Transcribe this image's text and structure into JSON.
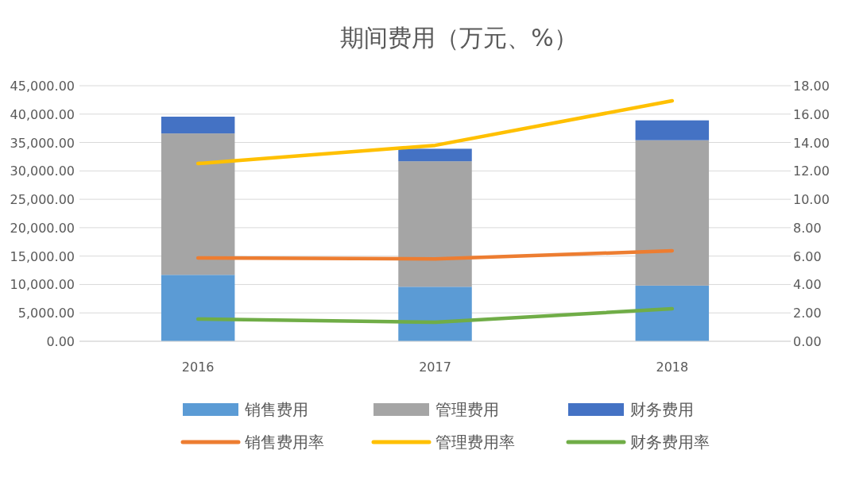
{
  "chart_data": {
    "type": "bar",
    "title": "期间费用（万元、%）",
    "stacked": true,
    "categories": [
      "2016",
      "2017",
      "2018"
    ],
    "series": [
      {
        "name": "销售费用",
        "color": "#5b9bd5",
        "values": [
          11700,
          9600,
          9800
        ]
      },
      {
        "name": "管理费用",
        "color": "#a5a5a5",
        "values": [
          24900,
          22100,
          25600
        ]
      },
      {
        "name": "财务费用",
        "color": "#4472c4",
        "values": [
          2950,
          2200,
          3500
        ]
      },
      {
        "name": "销售费用率",
        "type": "line",
        "axis": "y2",
        "color": "#ed7d31",
        "values": [
          5.87,
          5.8,
          6.37
        ]
      },
      {
        "name": "管理费用率",
        "type": "line",
        "axis": "y2",
        "color": "#ffc000",
        "values": [
          12.52,
          13.8,
          16.94
        ]
      },
      {
        "name": "财务费用率",
        "type": "line",
        "axis": "y2",
        "color": "#70ad47",
        "values": [
          1.57,
          1.34,
          2.29
        ]
      }
    ],
    "ylim": [
      0,
      45000
    ],
    "yticks": [
      {
        "value": 0,
        "label": "0.00"
      },
      {
        "value": 5000,
        "label": "5,000.00"
      },
      {
        "value": 10000,
        "label": "10,000.00"
      },
      {
        "value": 15000,
        "label": "15,000.00"
      },
      {
        "value": 20000,
        "label": "20,000.00"
      },
      {
        "value": 25000,
        "label": "25,000.00"
      },
      {
        "value": 30000,
        "label": "30,000.00"
      },
      {
        "value": 35000,
        "label": "35,000.00"
      },
      {
        "value": 40000,
        "label": "40,000.00"
      },
      {
        "value": 45000,
        "label": "45,000.00"
      }
    ],
    "y2lim": [
      0,
      18
    ],
    "y2ticks": [
      {
        "value": 0,
        "label": "0.00"
      },
      {
        "value": 2,
        "label": "2.00"
      },
      {
        "value": 4,
        "label": "4.00"
      },
      {
        "value": 6,
        "label": "6.00"
      },
      {
        "value": 8,
        "label": "8.00"
      },
      {
        "value": 10,
        "label": "10.00"
      },
      {
        "value": 12,
        "label": "12.00"
      },
      {
        "value": 14,
        "label": "14.00"
      },
      {
        "value": 16,
        "label": "16.00"
      },
      {
        "value": 18,
        "label": "18.00"
      }
    ],
    "grid": "y",
    "legend": "bottom",
    "marker": "none"
  }
}
